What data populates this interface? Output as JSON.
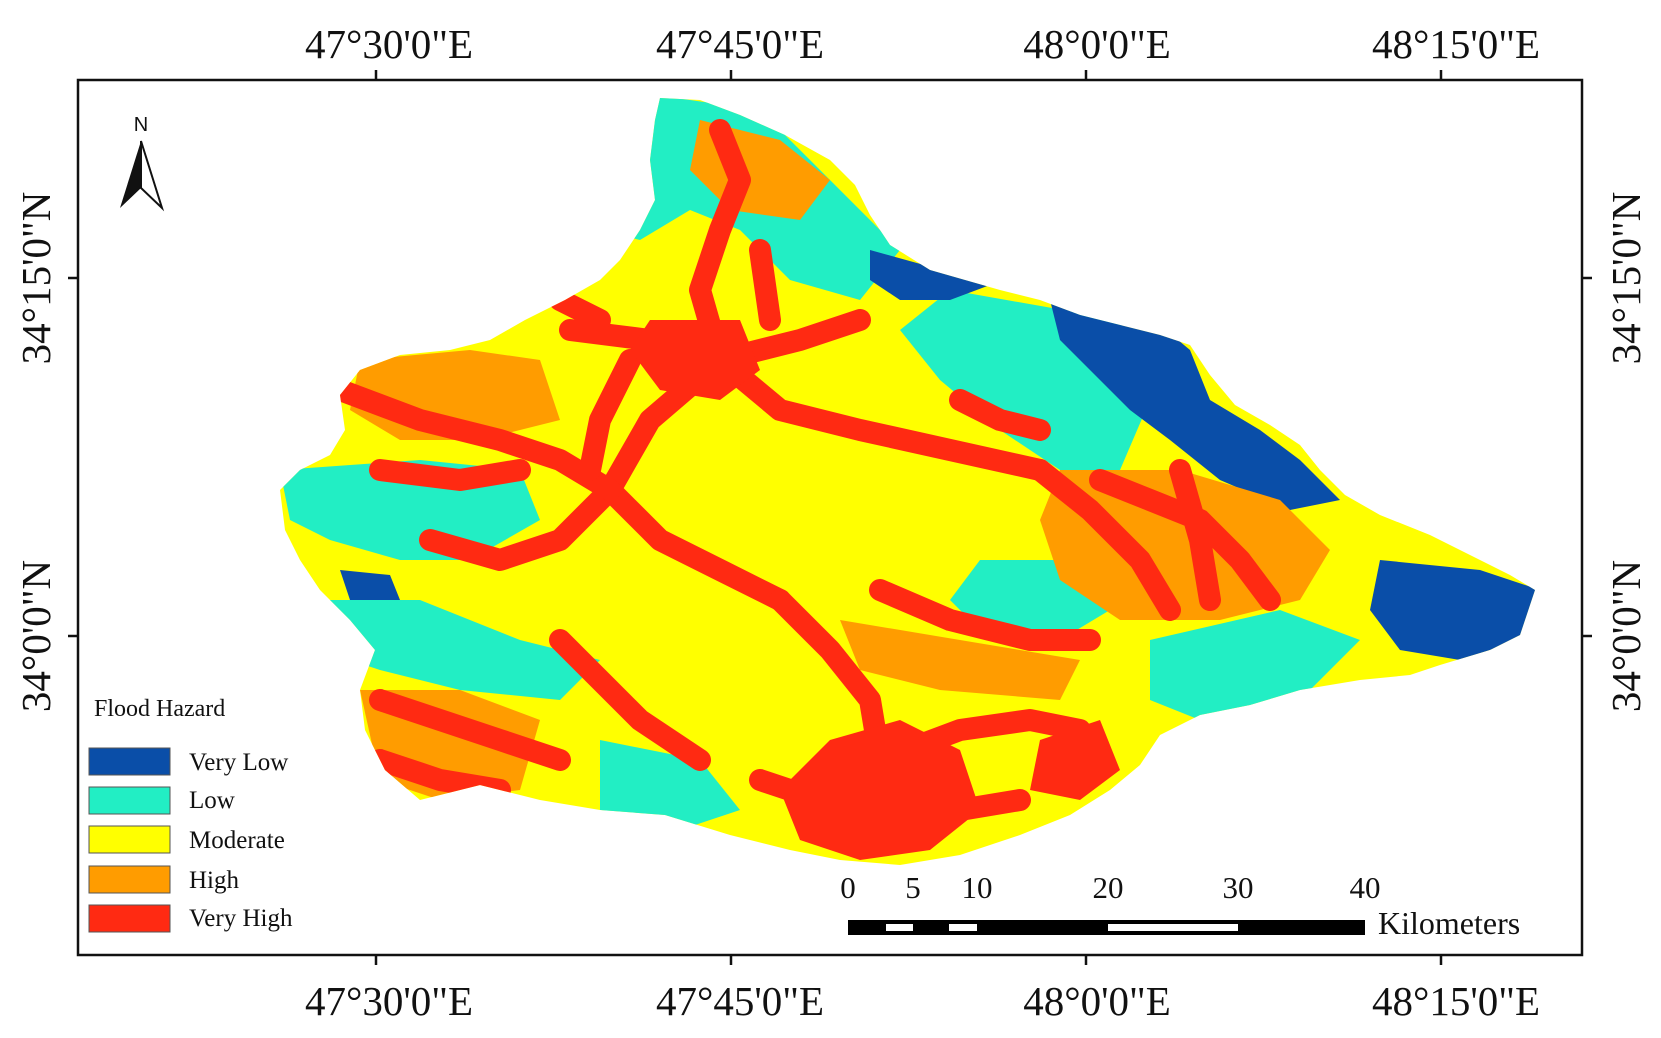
{
  "axes": {
    "longitude_labels": [
      "47°30'0\"E",
      "47°45'0\"E",
      "48°0'0\"E",
      "48°15'0\"E"
    ],
    "latitude_labels": [
      "34°15'0\"N",
      "34°0'0\"N"
    ]
  },
  "north_arrow": {
    "label": "N",
    "icon": "north-arrow-icon"
  },
  "legend": {
    "title": "Flood Hazard",
    "items": [
      {
        "label": "Very Low",
        "color": "#0a4ea8"
      },
      {
        "label": "Low",
        "color": "#22eec4"
      },
      {
        "label": "Moderate",
        "color": "#ffff00"
      },
      {
        "label": "High",
        "color": "#ff9c00"
      },
      {
        "label": "Very High",
        "color": "#ff2a12"
      }
    ]
  },
  "scale_bar": {
    "ticks": [
      "0",
      "5",
      "10",
      "20",
      "30",
      "40"
    ],
    "unit": "Kilometers"
  }
}
